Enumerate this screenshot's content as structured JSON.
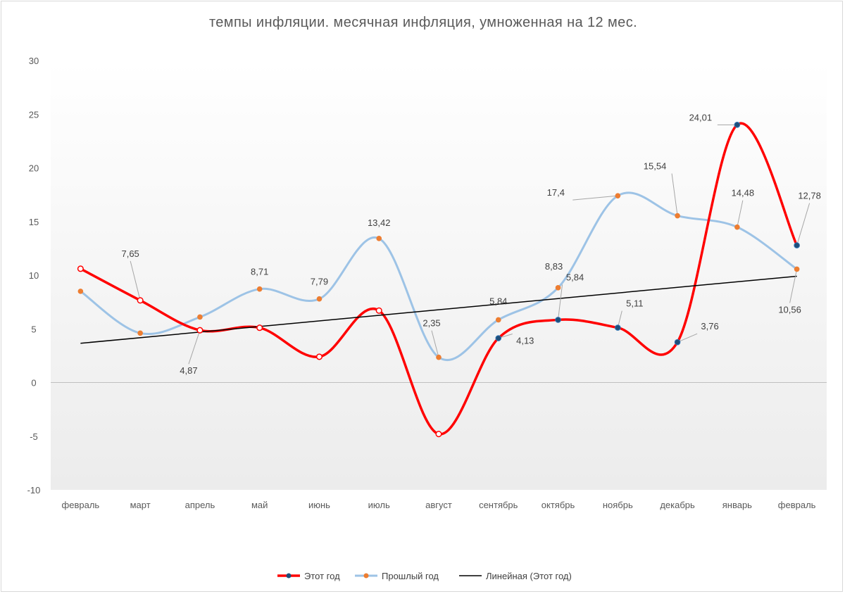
{
  "chart_data": {
    "type": "line",
    "title": "темпы инфляции. месячная инфляция, умноженная на 12 мес.",
    "categories": [
      "февраль",
      "март",
      "апрель",
      "май",
      "июнь",
      "июль",
      "август",
      "сентябрь",
      "октябрь",
      "ноябрь",
      "декабрь",
      "январь",
      "февраль"
    ],
    "ylim": [
      -10,
      30
    ],
    "yticks": [
      "30",
      "25",
      "20",
      "15",
      "10",
      "5",
      "0",
      "-5",
      "-10"
    ],
    "series": [
      {
        "name": "Этот год",
        "color": "#ff0000",
        "values": [
          10.6,
          7.65,
          4.87,
          5.1,
          2.4,
          6.7,
          -4.8,
          4.13,
          5.84,
          5.11,
          3.76,
          24.01,
          12.78
        ],
        "labels": [
          "",
          "7,65",
          "4,87",
          "",
          "",
          "",
          "",
          "4,13",
          "5,84",
          "5,11",
          "3,76",
          "24,01",
          "12,78"
        ]
      },
      {
        "name": "Прошлый год",
        "color": "#9dc3e6",
        "values": [
          8.5,
          4.6,
          6.1,
          8.71,
          7.79,
          13.42,
          2.35,
          5.84,
          8.83,
          17.4,
          15.54,
          14.48,
          10.56
        ],
        "labels": [
          "",
          "",
          "",
          "8,71",
          "7,79",
          "13,42",
          "2,35",
          "5,84",
          "8,83",
          "17,4",
          "15,54",
          "14,48",
          "10,56"
        ]
      }
    ],
    "trendline": {
      "name": "Линейная (Этот год)",
      "of_series": "Этот год",
      "color": "#000000"
    },
    "legend": "bottom",
    "grid": false
  }
}
